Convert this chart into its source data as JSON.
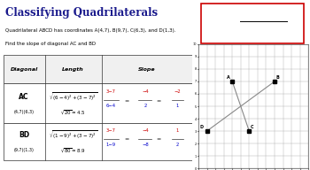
{
  "title": "Classifying Quadrilaterals",
  "subtitle": "Quadrilateral ABCD has coordinates A(4,7), B(9,7), C(6,3), and D(1,3).",
  "instruction": "Find the slope of diagonal AC and BD",
  "table_headers": [
    "Diagonal",
    "Length",
    "Slope"
  ],
  "points": {
    "A": [
      4,
      7
    ],
    "B": [
      9,
      7
    ],
    "C": [
      6,
      3
    ],
    "D": [
      1,
      3
    ]
  },
  "bg_color": "#ffffff",
  "title_color": "#1a1a8c",
  "slope_color_num": "#cc0000",
  "slope_color_denom": "#0000cc",
  "grid_xlim": [
    0,
    13
  ],
  "grid_ylim": [
    0,
    10
  ]
}
